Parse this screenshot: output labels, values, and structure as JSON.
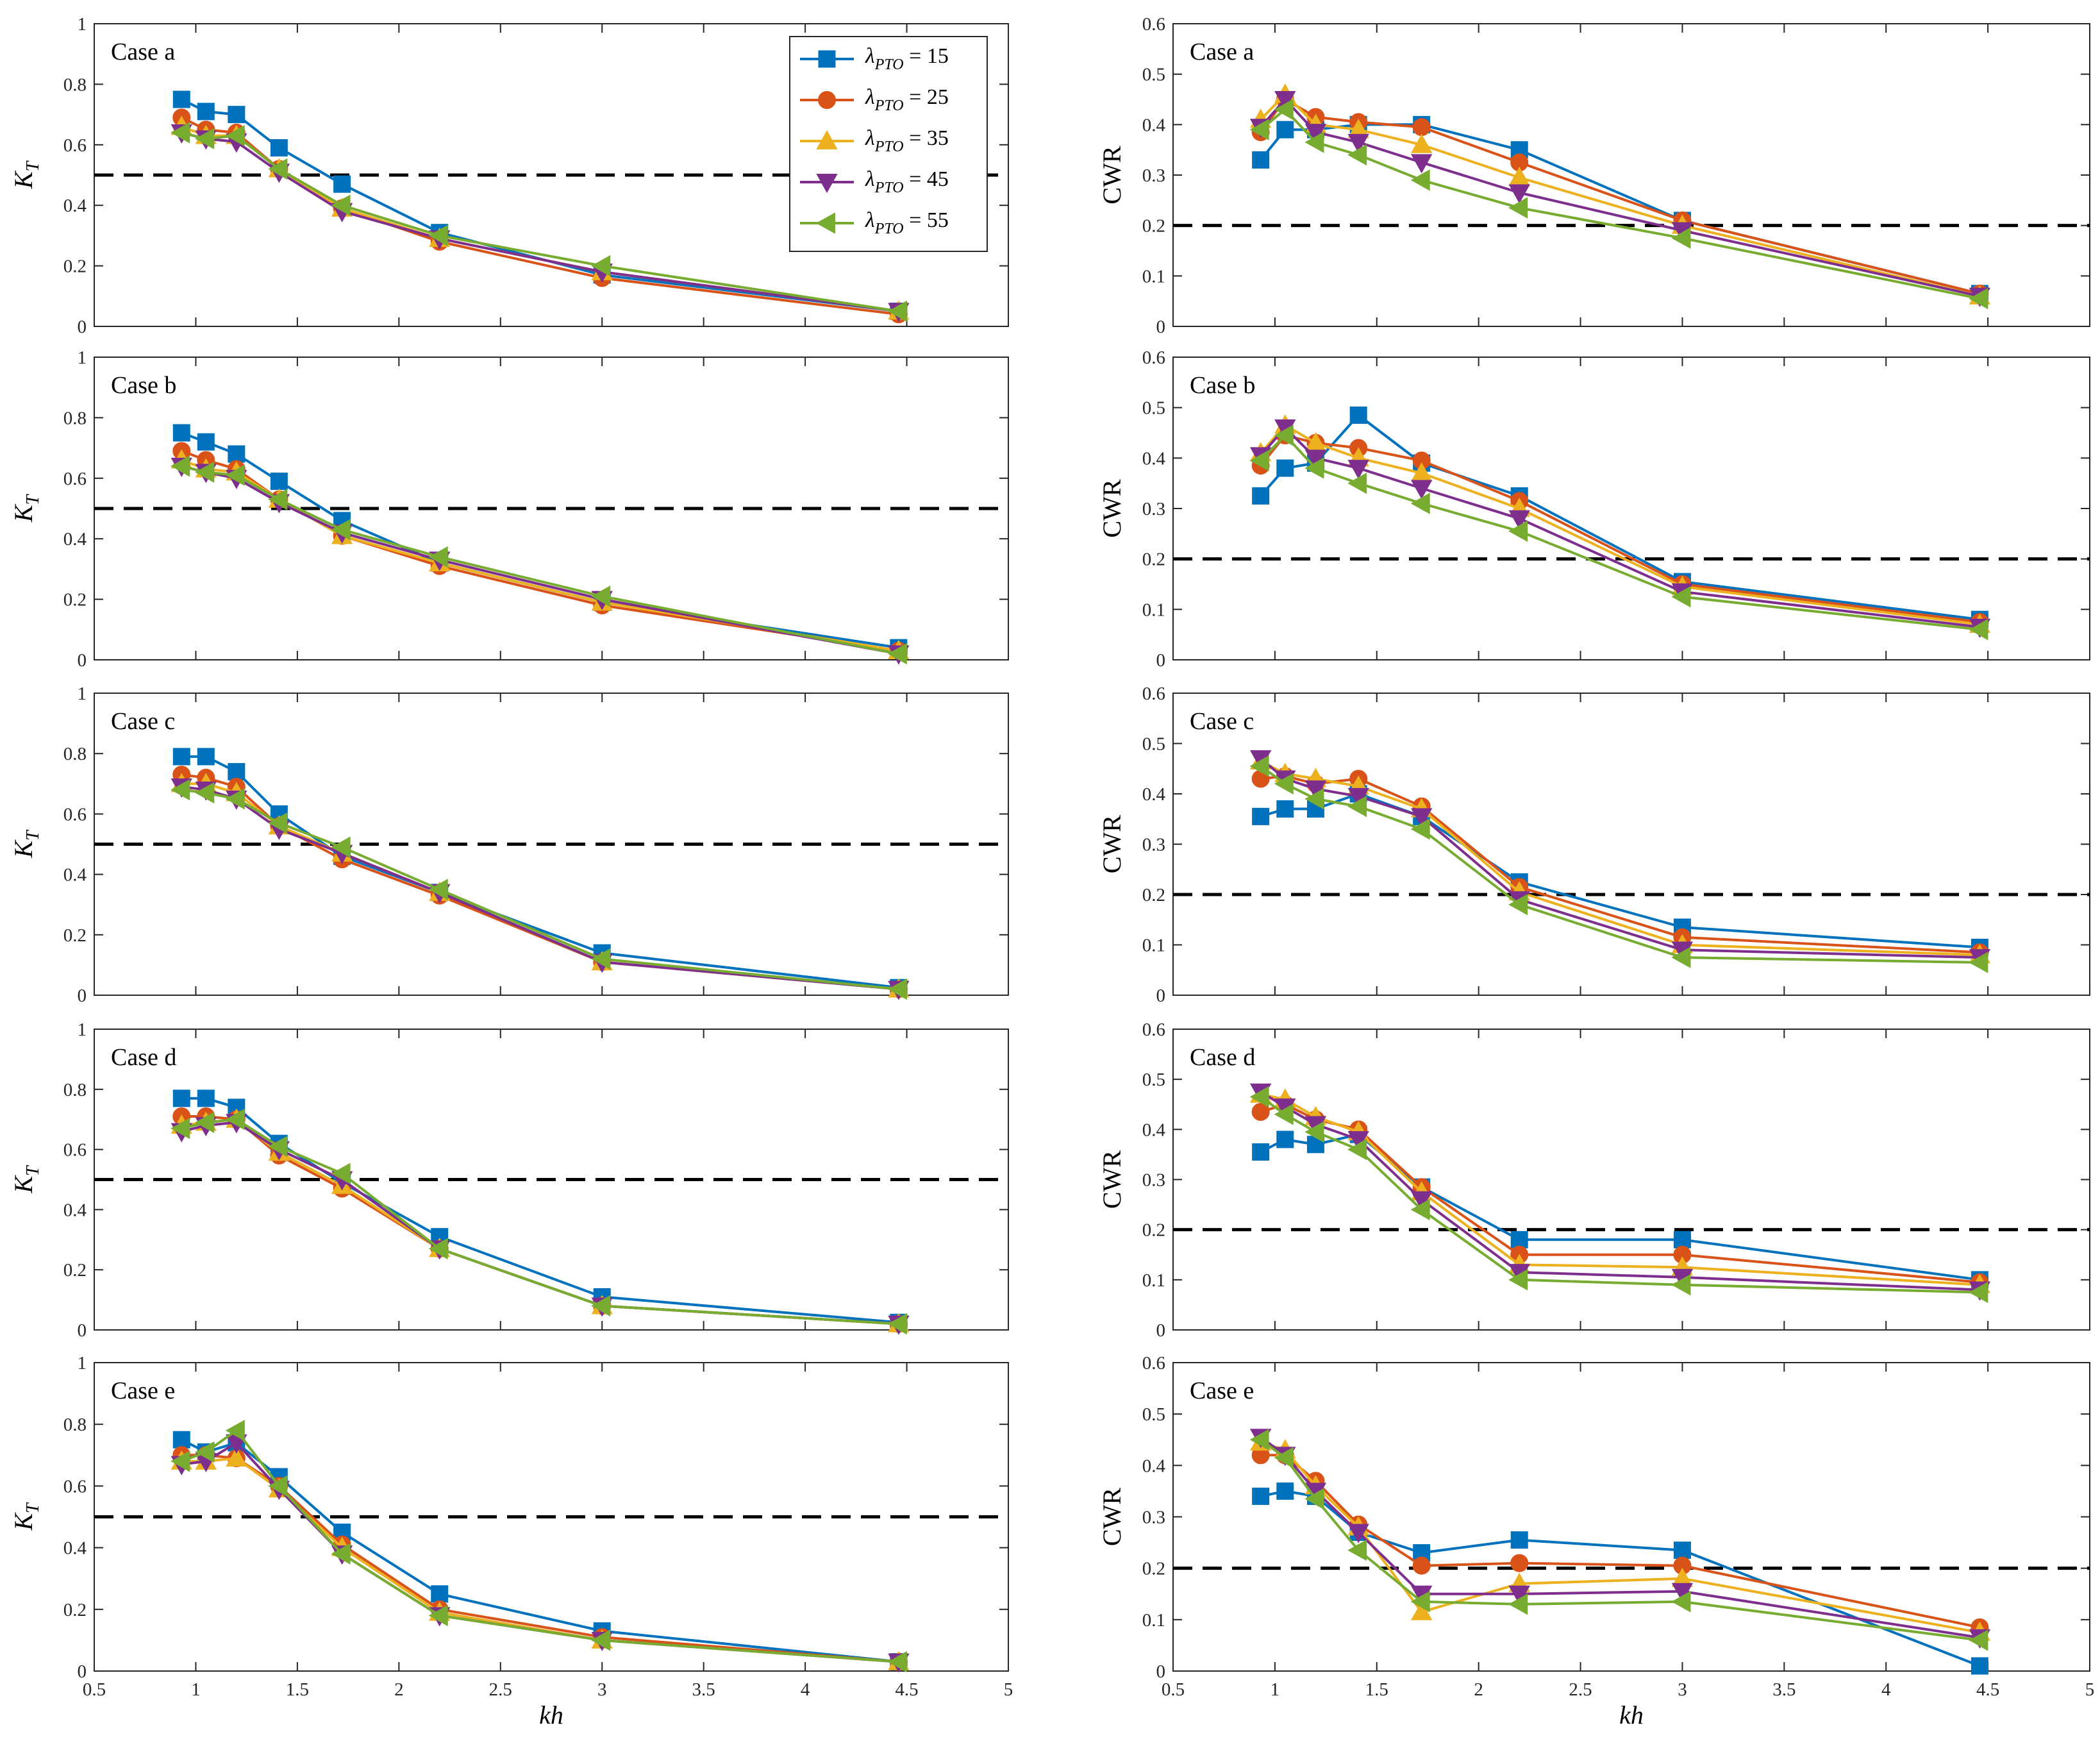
{
  "figure": {
    "x_axis_title": "kh",
    "x_ticks": [
      "0.5",
      "1",
      "1.5",
      "2",
      "2.5",
      "3",
      "3.5",
      "4",
      "4.5",
      "5"
    ],
    "kt_axis_title": "K",
    "kt_axis_subscript": "T",
    "cwr_axis_title": "CWR",
    "kt_ticks": [
      "0",
      "0.2",
      "0.4",
      "0.6",
      "0.8",
      "1"
    ],
    "cwr_ticks": [
      "0",
      "0.1",
      "0.2",
      "0.3",
      "0.4",
      "0.5",
      "0.6"
    ]
  },
  "legend": {
    "symbol": "λ",
    "subscript": "PTO",
    "entries": [
      {
        "value": "15",
        "color": "#0072BD",
        "marker": "square"
      },
      {
        "value": "25",
        "color": "#D95319",
        "marker": "circle"
      },
      {
        "value": "35",
        "color": "#EDB120",
        "marker": "triangle-up"
      },
      {
        "value": "45",
        "color": "#7E2F8E",
        "marker": "triangle-down"
      },
      {
        "value": "55",
        "color": "#77AC30",
        "marker": "triangle-left"
      }
    ]
  },
  "chart_data": [
    {
      "type": "line",
      "title": "Case a",
      "column": "KT",
      "xlabel": "kh",
      "ylabel": "K_T",
      "xlim": [
        0.5,
        5
      ],
      "ylim": [
        0,
        1
      ],
      "threshold": 0.5,
      "x": [
        0.93,
        1.05,
        1.2,
        1.41,
        1.72,
        2.2,
        3.0,
        4.46
      ],
      "series": [
        {
          "name": "λPTO = 15",
          "values": [
            0.75,
            0.71,
            0.7,
            0.59,
            0.47,
            0.31,
            0.17,
            0.05
          ]
        },
        {
          "name": "λPTO = 25",
          "values": [
            0.69,
            0.65,
            0.64,
            0.52,
            0.39,
            0.28,
            0.16,
            0.04
          ]
        },
        {
          "name": "λPTO = 35",
          "values": [
            0.66,
            0.63,
            0.63,
            0.52,
            0.39,
            0.29,
            0.18,
            0.05
          ]
        },
        {
          "name": "λPTO = 45",
          "values": [
            0.64,
            0.62,
            0.61,
            0.51,
            0.38,
            0.29,
            0.18,
            0.05
          ]
        },
        {
          "name": "λPTO = 55",
          "values": [
            0.64,
            0.62,
            0.63,
            0.52,
            0.4,
            0.3,
            0.2,
            0.05
          ]
        }
      ]
    },
    {
      "type": "line",
      "title": "Case a",
      "column": "CWR",
      "xlabel": "kh",
      "ylabel": "CWR",
      "xlim": [
        0.5,
        5
      ],
      "ylim": [
        0,
        0.6
      ],
      "threshold": 0.2,
      "x": [
        0.93,
        1.05,
        1.2,
        1.41,
        1.72,
        2.2,
        3.0,
        4.46
      ],
      "series": [
        {
          "name": "λPTO = 15",
          "values": [
            0.33,
            0.39,
            0.39,
            0.4,
            0.4,
            0.35,
            0.21,
            0.065
          ]
        },
        {
          "name": "λPTO = 25",
          "values": [
            0.385,
            0.45,
            0.415,
            0.405,
            0.395,
            0.325,
            0.21,
            0.065
          ]
        },
        {
          "name": "λPTO = 35",
          "values": [
            0.41,
            0.46,
            0.4,
            0.39,
            0.36,
            0.295,
            0.2,
            0.06
          ]
        },
        {
          "name": "λPTO = 45",
          "values": [
            0.395,
            0.45,
            0.385,
            0.365,
            0.325,
            0.265,
            0.19,
            0.06
          ]
        },
        {
          "name": "λPTO = 55",
          "values": [
            0.39,
            0.43,
            0.365,
            0.34,
            0.29,
            0.235,
            0.175,
            0.055
          ]
        }
      ]
    },
    {
      "type": "line",
      "title": "Case b",
      "column": "KT",
      "xlabel": "kh",
      "ylabel": "K_T",
      "xlim": [
        0.5,
        5
      ],
      "ylim": [
        0,
        1
      ],
      "threshold": 0.5,
      "x": [
        0.93,
        1.05,
        1.2,
        1.41,
        1.72,
        2.2,
        3.0,
        4.46
      ],
      "series": [
        {
          "name": "λPTO = 15",
          "values": [
            0.75,
            0.72,
            0.68,
            0.59,
            0.46,
            0.32,
            0.19,
            0.04
          ]
        },
        {
          "name": "λPTO = 25",
          "values": [
            0.69,
            0.66,
            0.63,
            0.53,
            0.41,
            0.31,
            0.18,
            0.03
          ]
        },
        {
          "name": "λPTO = 35",
          "values": [
            0.66,
            0.63,
            0.62,
            0.53,
            0.41,
            0.32,
            0.19,
            0.03
          ]
        },
        {
          "name": "λPTO = 45",
          "values": [
            0.64,
            0.62,
            0.6,
            0.52,
            0.42,
            0.33,
            0.2,
            0.02
          ]
        },
        {
          "name": "λPTO = 55",
          "values": [
            0.64,
            0.62,
            0.61,
            0.53,
            0.43,
            0.34,
            0.21,
            0.02
          ]
        }
      ]
    },
    {
      "type": "line",
      "title": "Case b",
      "column": "CWR",
      "xlabel": "kh",
      "ylabel": "CWR",
      "xlim": [
        0.5,
        5
      ],
      "ylim": [
        0,
        0.6
      ],
      "threshold": 0.2,
      "x": [
        0.93,
        1.05,
        1.2,
        1.41,
        1.72,
        2.2,
        3.0,
        4.46
      ],
      "series": [
        {
          "name": "λPTO = 15",
          "values": [
            0.325,
            0.38,
            0.39,
            0.485,
            0.39,
            0.325,
            0.155,
            0.08
          ]
        },
        {
          "name": "λPTO = 25",
          "values": [
            0.385,
            0.445,
            0.43,
            0.42,
            0.395,
            0.315,
            0.15,
            0.075
          ]
        },
        {
          "name": "λPTO = 35",
          "values": [
            0.41,
            0.465,
            0.43,
            0.4,
            0.37,
            0.3,
            0.145,
            0.07
          ]
        },
        {
          "name": "λPTO = 45",
          "values": [
            0.405,
            0.46,
            0.4,
            0.38,
            0.34,
            0.28,
            0.135,
            0.065
          ]
        },
        {
          "name": "λPTO = 55",
          "values": [
            0.395,
            0.445,
            0.38,
            0.35,
            0.31,
            0.255,
            0.125,
            0.06
          ]
        }
      ]
    },
    {
      "type": "line",
      "title": "Case c",
      "column": "KT",
      "xlabel": "kh",
      "ylabel": "K_T",
      "xlim": [
        0.5,
        5
      ],
      "ylim": [
        0,
        1
      ],
      "threshold": 0.5,
      "x": [
        0.93,
        1.05,
        1.2,
        1.41,
        1.72,
        2.2,
        3.0,
        4.46
      ],
      "series": [
        {
          "name": "λPTO = 15",
          "values": [
            0.79,
            0.79,
            0.74,
            0.6,
            0.46,
            0.34,
            0.14,
            0.025
          ]
        },
        {
          "name": "λPTO = 25",
          "values": [
            0.73,
            0.72,
            0.69,
            0.56,
            0.45,
            0.33,
            0.11,
            0.02
          ]
        },
        {
          "name": "λPTO = 35",
          "values": [
            0.7,
            0.7,
            0.67,
            0.56,
            0.47,
            0.34,
            0.11,
            0.02
          ]
        },
        {
          "name": "λPTO = 45",
          "values": [
            0.69,
            0.68,
            0.65,
            0.55,
            0.47,
            0.34,
            0.11,
            0.02
          ]
        },
        {
          "name": "λPTO = 55",
          "values": [
            0.68,
            0.67,
            0.65,
            0.57,
            0.49,
            0.35,
            0.12,
            0.02
          ]
        }
      ]
    },
    {
      "type": "line",
      "title": "Case c",
      "column": "CWR",
      "xlabel": "kh",
      "ylabel": "CWR",
      "xlim": [
        0.5,
        5
      ],
      "ylim": [
        0,
        0.6
      ],
      "threshold": 0.2,
      "x": [
        0.93,
        1.05,
        1.2,
        1.41,
        1.72,
        2.2,
        3.0,
        4.46
      ],
      "series": [
        {
          "name": "λPTO = 15",
          "values": [
            0.355,
            0.37,
            0.37,
            0.4,
            0.355,
            0.225,
            0.135,
            0.095
          ]
        },
        {
          "name": "λPTO = 25",
          "values": [
            0.43,
            0.435,
            0.42,
            0.43,
            0.375,
            0.215,
            0.115,
            0.085
          ]
        },
        {
          "name": "λPTO = 35",
          "values": [
            0.465,
            0.44,
            0.43,
            0.415,
            0.37,
            0.205,
            0.1,
            0.08
          ]
        },
        {
          "name": "λPTO = 45",
          "values": [
            0.47,
            0.43,
            0.41,
            0.395,
            0.355,
            0.19,
            0.09,
            0.075
          ]
        },
        {
          "name": "λPTO = 55",
          "values": [
            0.455,
            0.42,
            0.39,
            0.375,
            0.33,
            0.18,
            0.075,
            0.065
          ]
        }
      ]
    },
    {
      "type": "line",
      "title": "Case d",
      "column": "KT",
      "xlabel": "kh",
      "ylabel": "K_T",
      "xlim": [
        0.5,
        5
      ],
      "ylim": [
        0,
        1
      ],
      "threshold": 0.5,
      "x": [
        0.93,
        1.05,
        1.2,
        1.41,
        1.72,
        2.2,
        3.0,
        4.46
      ],
      "series": [
        {
          "name": "λPTO = 15",
          "values": [
            0.77,
            0.77,
            0.74,
            0.62,
            0.49,
            0.31,
            0.11,
            0.025
          ]
        },
        {
          "name": "λPTO = 25",
          "values": [
            0.71,
            0.71,
            0.7,
            0.58,
            0.47,
            0.27,
            0.08,
            0.02
          ]
        },
        {
          "name": "λPTO = 35",
          "values": [
            0.68,
            0.69,
            0.7,
            0.59,
            0.48,
            0.27,
            0.08,
            0.02
          ]
        },
        {
          "name": "λPTO = 45",
          "values": [
            0.66,
            0.68,
            0.69,
            0.6,
            0.5,
            0.27,
            0.08,
            0.02
          ]
        },
        {
          "name": "λPTO = 55",
          "values": [
            0.67,
            0.69,
            0.7,
            0.61,
            0.52,
            0.27,
            0.08,
            0.02
          ]
        }
      ]
    },
    {
      "type": "line",
      "title": "Case d",
      "column": "CWR",
      "xlabel": "kh",
      "ylabel": "CWR",
      "xlim": [
        0.5,
        5
      ],
      "ylim": [
        0,
        0.6
      ],
      "threshold": 0.2,
      "x": [
        0.93,
        1.05,
        1.2,
        1.41,
        1.72,
        2.2,
        3.0,
        4.46
      ],
      "series": [
        {
          "name": "λPTO = 15",
          "values": [
            0.355,
            0.38,
            0.37,
            0.39,
            0.285,
            0.18,
            0.18,
            0.1
          ]
        },
        {
          "name": "λPTO = 25",
          "values": [
            0.435,
            0.45,
            0.42,
            0.4,
            0.285,
            0.15,
            0.15,
            0.095
          ]
        },
        {
          "name": "λPTO = 35",
          "values": [
            0.47,
            0.46,
            0.425,
            0.395,
            0.275,
            0.13,
            0.125,
            0.09
          ]
        },
        {
          "name": "λPTO = 45",
          "values": [
            0.475,
            0.445,
            0.41,
            0.38,
            0.26,
            0.115,
            0.105,
            0.08
          ]
        },
        {
          "name": "λPTO = 55",
          "values": [
            0.465,
            0.43,
            0.395,
            0.36,
            0.24,
            0.1,
            0.09,
            0.075
          ]
        }
      ]
    },
    {
      "type": "line",
      "title": "Case e",
      "column": "KT",
      "xlabel": "kh",
      "ylabel": "K_T",
      "xlim": [
        0.5,
        5
      ],
      "ylim": [
        0,
        1
      ],
      "threshold": 0.5,
      "x": [
        0.93,
        1.05,
        1.2,
        1.41,
        1.72,
        2.2,
        3.0,
        4.46
      ],
      "series": [
        {
          "name": "λPTO = 15",
          "values": [
            0.75,
            0.71,
            0.74,
            0.63,
            0.45,
            0.25,
            0.13,
            0.03
          ]
        },
        {
          "name": "λPTO = 25",
          "values": [
            0.7,
            0.7,
            0.69,
            0.6,
            0.41,
            0.2,
            0.11,
            0.03
          ]
        },
        {
          "name": "λPTO = 35",
          "values": [
            0.68,
            0.68,
            0.69,
            0.59,
            0.4,
            0.19,
            0.1,
            0.03
          ]
        },
        {
          "name": "λPTO = 45",
          "values": [
            0.67,
            0.68,
            0.74,
            0.59,
            0.38,
            0.18,
            0.1,
            0.03
          ]
        },
        {
          "name": "λPTO = 55",
          "values": [
            0.68,
            0.71,
            0.78,
            0.6,
            0.38,
            0.18,
            0.1,
            0.03
          ]
        }
      ]
    },
    {
      "type": "line",
      "title": "Case e",
      "column": "CWR",
      "xlabel": "kh",
      "ylabel": "CWR",
      "xlim": [
        0.5,
        5
      ],
      "ylim": [
        0,
        0.6
      ],
      "threshold": 0.2,
      "x": [
        0.93,
        1.05,
        1.2,
        1.41,
        1.72,
        2.2,
        3.0,
        4.46
      ],
      "series": [
        {
          "name": "λPTO = 15",
          "values": [
            0.34,
            0.35,
            0.34,
            0.27,
            0.23,
            0.255,
            0.235,
            0.01
          ]
        },
        {
          "name": "λPTO = 25",
          "values": [
            0.42,
            0.42,
            0.37,
            0.285,
            0.205,
            0.21,
            0.205,
            0.085
          ]
        },
        {
          "name": "λPTO = 35",
          "values": [
            0.445,
            0.43,
            0.36,
            0.28,
            0.115,
            0.17,
            0.18,
            0.075
          ]
        },
        {
          "name": "λPTO = 45",
          "values": [
            0.455,
            0.42,
            0.35,
            0.27,
            0.15,
            0.15,
            0.155,
            0.065
          ]
        },
        {
          "name": "λPTO = 55",
          "values": [
            0.45,
            0.415,
            0.335,
            0.235,
            0.135,
            0.13,
            0.135,
            0.06
          ]
        }
      ]
    }
  ]
}
